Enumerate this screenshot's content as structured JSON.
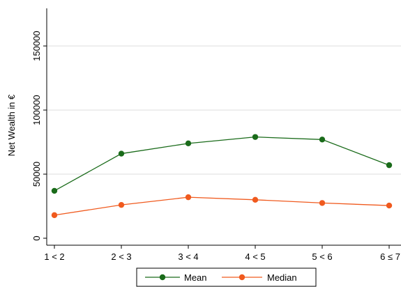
{
  "chart_data": {
    "type": "line",
    "title": "",
    "xlabel": "",
    "ylabel": "Net Wealth in €",
    "categories": [
      "1 < 2",
      "2 < 3",
      "3 < 4",
      "4 < 5",
      "5 < 6",
      "6 ≤ 7"
    ],
    "ylim": [
      0,
      180000
    ],
    "yticks": [
      0,
      50000,
      100000,
      150000
    ],
    "grid": true,
    "legend_position": "bottom",
    "series": [
      {
        "name": "Mean",
        "color": "#1a6b1a",
        "values": [
          37000,
          66000,
          74000,
          79000,
          77000,
          57000
        ]
      },
      {
        "name": "Median",
        "color": "#f05a1e",
        "values": [
          18000,
          26000,
          32000,
          30000,
          27500,
          25500
        ]
      }
    ]
  }
}
